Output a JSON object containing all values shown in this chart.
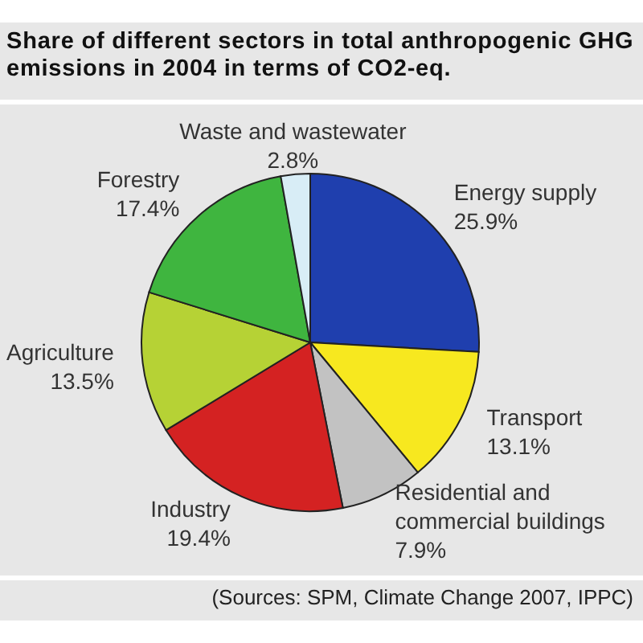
{
  "chart_data": {
    "type": "pie",
    "title": "Share of different sectors in total anthropogenic GHG emissions in 2004 in terms of CO2-eq.",
    "categories": [
      "Energy supply",
      "Transport",
      "Residential and commercial buildings",
      "Industry",
      "Agriculture",
      "Forestry",
      "Waste and wastewater"
    ],
    "values": [
      25.9,
      13.1,
      7.9,
      19.4,
      13.5,
      17.4,
      2.8
    ],
    "colors": [
      "#1f3fae",
      "#f7e81f",
      "#c2c2c2",
      "#d42222",
      "#b6d235",
      "#3fb53f",
      "#d8edf6"
    ],
    "value_labels": [
      "25.9%",
      "13.1%",
      "7.9%",
      "19.4%",
      "13.5%",
      "17.4%",
      "2.8%"
    ],
    "annotations": [
      "(Sources: SPM, Climate Change 2007, IPPC)"
    ]
  }
}
